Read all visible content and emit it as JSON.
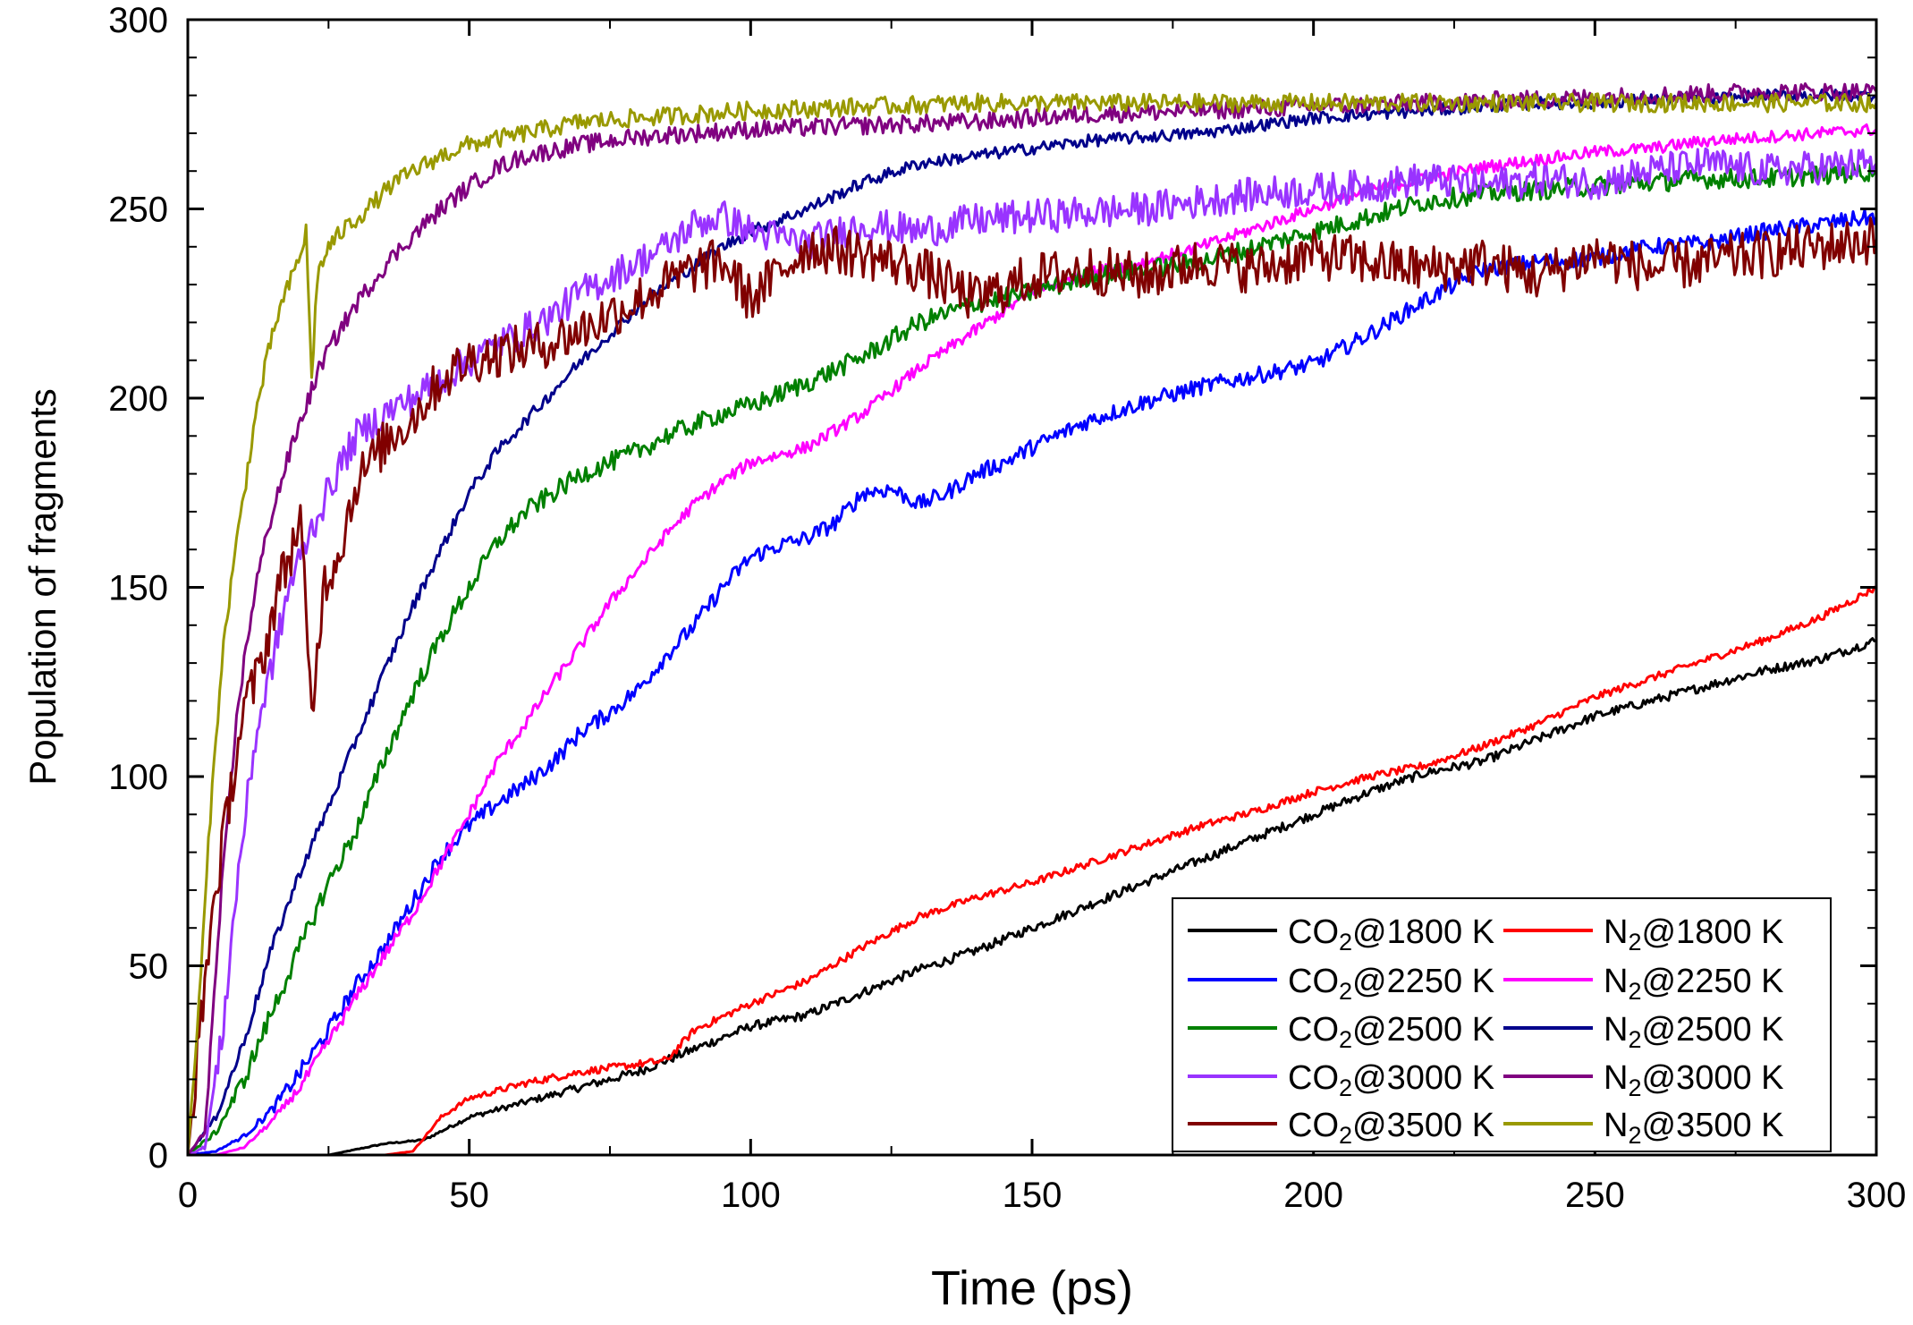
{
  "chart_data": {
    "type": "line",
    "title": "",
    "xlabel": "Time (ps)",
    "ylabel": "Population of fragments",
    "xlim": [
      0,
      300
    ],
    "ylim": [
      0,
      300
    ],
    "x_ticks": [
      "0",
      "50",
      "100",
      "150",
      "200",
      "250",
      "300"
    ],
    "y_ticks": [
      "0",
      "50",
      "100",
      "150",
      "200",
      "250",
      "300"
    ],
    "grid": false,
    "legend_position": "bottom-right",
    "series": [
      {
        "name": "CO2@1800 K",
        "formula": "CO",
        "sub": "2",
        "temp": "@1800 K",
        "color": "#000000",
        "x": [
          0,
          25,
          35,
          42,
          50,
          60,
          70,
          80,
          90,
          100,
          110,
          120,
          130,
          140,
          150,
          160,
          170,
          180,
          190,
          200,
          210,
          220,
          230,
          240,
          250,
          260,
          270,
          280,
          290,
          300
        ],
        "y": [
          0,
          0,
          3,
          4,
          10,
          14,
          18,
          22,
          28,
          34,
          37,
          43,
          49,
          54,
          60,
          66,
          72,
          78,
          84,
          90,
          96,
          101,
          104,
          110,
          116,
          120,
          124,
          128,
          131,
          136
        ]
      },
      {
        "name": "N2@1800 K",
        "formula": "N",
        "sub": "2",
        "temp": "@1800 K",
        "color": "#ff0000",
        "x": [
          0,
          35,
          40,
          45,
          50,
          60,
          70,
          80,
          85,
          90,
          100,
          110,
          120,
          130,
          140,
          150,
          160,
          170,
          180,
          190,
          200,
          210,
          220,
          230,
          240,
          250,
          260,
          270,
          280,
          290,
          300
        ],
        "y": [
          0,
          0,
          1,
          10,
          15,
          19,
          22,
          24,
          25,
          33,
          40,
          46,
          55,
          63,
          68,
          72,
          77,
          82,
          87,
          91,
          96,
          100,
          103,
          108,
          114,
          121,
          126,
          131,
          136,
          142,
          150
        ]
      },
      {
        "name": "CO2@2250 K",
        "formula": "CO",
        "sub": "2",
        "temp": "@2250 K",
        "color": "#0000ff",
        "x": [
          0,
          5,
          10,
          15,
          20,
          25,
          30,
          35,
          40,
          45,
          50,
          55,
          60,
          65,
          70,
          75,
          80,
          85,
          90,
          95,
          100,
          105,
          110,
          115,
          120,
          125,
          130,
          135,
          140,
          145,
          150,
          160,
          170,
          180,
          190,
          200,
          210,
          220,
          230,
          240,
          250,
          260,
          270,
          280,
          290,
          300
        ],
        "y": [
          0,
          1,
          5,
          12,
          22,
          33,
          45,
          55,
          67,
          79,
          87,
          93,
          98,
          104,
          112,
          117,
          123,
          132,
          140,
          150,
          158,
          161,
          163,
          167,
          175,
          176,
          172,
          175,
          180,
          183,
          187,
          194,
          199,
          203,
          206,
          209,
          217,
          226,
          234,
          236,
          237,
          240,
          241,
          244,
          246,
          248
        ]
      },
      {
        "name": "N2@2250 K",
        "formula": "N",
        "sub": "2",
        "temp": "@2250 K",
        "color": "#ff00ff",
        "x": [
          0,
          5,
          10,
          15,
          20,
          25,
          30,
          35,
          40,
          45,
          50,
          55,
          60,
          65,
          70,
          75,
          80,
          85,
          90,
          95,
          100,
          110,
          120,
          130,
          140,
          150,
          160,
          170,
          180,
          190,
          200,
          210,
          220,
          230,
          240,
          250,
          260,
          270,
          280,
          290,
          300
        ],
        "y": [
          0,
          0,
          2,
          9,
          18,
          30,
          42,
          53,
          64,
          77,
          90,
          104,
          114,
          125,
          135,
          146,
          155,
          164,
          172,
          178,
          183,
          187,
          196,
          208,
          218,
          228,
          233,
          236,
          240,
          245,
          250,
          255,
          258,
          261,
          263,
          265,
          266,
          268,
          269,
          270,
          271
        ]
      },
      {
        "name": "CO2@2500 K",
        "formula": "CO",
        "sub": "2",
        "temp": "@2500 K",
        "color": "#008000",
        "x": [
          0,
          5,
          10,
          15,
          20,
          25,
          30,
          35,
          40,
          45,
          50,
          55,
          60,
          65,
          70,
          75,
          80,
          85,
          90,
          95,
          100,
          110,
          120,
          130,
          140,
          150,
          160,
          170,
          180,
          190,
          200,
          210,
          220,
          230,
          240,
          250,
          260,
          270,
          280,
          290,
          300
        ],
        "y": [
          0,
          6,
          20,
          38,
          55,
          72,
          86,
          105,
          122,
          137,
          150,
          162,
          170,
          175,
          180,
          183,
          186,
          190,
          193,
          196,
          198,
          204,
          211,
          220,
          225,
          228,
          232,
          234,
          236,
          240,
          244,
          248,
          252,
          254,
          255,
          256,
          257,
          258,
          258,
          259,
          260
        ]
      },
      {
        "name": "N2@2500 K",
        "formula": "N",
        "sub": "2",
        "temp": "@2500 K",
        "color": "#00008b",
        "x": [
          0,
          5,
          10,
          15,
          20,
          25,
          30,
          35,
          40,
          45,
          50,
          55,
          60,
          65,
          70,
          75,
          80,
          85,
          90,
          95,
          100,
          110,
          120,
          130,
          140,
          150,
          160,
          170,
          180,
          190,
          200,
          210,
          220,
          230,
          240,
          250,
          260,
          270,
          280,
          290,
          300
        ],
        "y": [
          0,
          10,
          30,
          55,
          75,
          92,
          110,
          128,
          145,
          160,
          175,
          186,
          194,
          202,
          210,
          217,
          224,
          230,
          235,
          240,
          244,
          250,
          257,
          262,
          264,
          266,
          268,
          269,
          270,
          272,
          274,
          275,
          276,
          277,
          278,
          278,
          279,
          279,
          280,
          280,
          280
        ]
      },
      {
        "name": "CO2@3000 K",
        "formula": "CO",
        "sub": "2",
        "temp": "@3000 K",
        "color": "#9933ff",
        "x": [
          0,
          3,
          6,
          9,
          12,
          15,
          18,
          21,
          24,
          27,
          30,
          35,
          40,
          45,
          50,
          55,
          60,
          65,
          70,
          75,
          80,
          85,
          90,
          95,
          100,
          110,
          120,
          130,
          140,
          150,
          160,
          170,
          180,
          190,
          200,
          210,
          220,
          230,
          240,
          250,
          260,
          270,
          280,
          290,
          300
        ],
        "y": [
          0,
          2,
          30,
          75,
          110,
          130,
          150,
          162,
          172,
          182,
          190,
          196,
          200,
          205,
          210,
          214,
          218,
          222,
          228,
          232,
          236,
          240,
          246,
          248,
          244,
          241,
          246,
          244,
          247,
          248,
          249,
          250,
          252,
          254,
          255,
          256,
          258,
          256,
          258,
          257,
          260,
          262,
          260,
          261,
          262
        ]
      },
      {
        "name": "N2@3000 K",
        "formula": "N",
        "sub": "2",
        "temp": "@3000 K",
        "color": "#800080",
        "x": [
          0,
          3,
          6,
          9,
          12,
          15,
          18,
          21,
          24,
          27,
          30,
          35,
          40,
          45,
          50,
          55,
          60,
          70,
          80,
          90,
          100,
          120,
          140,
          160,
          180,
          200,
          220,
          240,
          260,
          280,
          300
        ],
        "y": [
          0,
          6,
          70,
          120,
          150,
          170,
          185,
          198,
          210,
          218,
          225,
          235,
          243,
          250,
          256,
          261,
          264,
          267,
          269,
          270,
          271,
          272,
          273,
          275,
          276,
          277,
          278,
          279,
          280,
          281,
          281
        ]
      },
      {
        "name": "CO2@3500 K",
        "formula": "CO",
        "sub": "2",
        "temp": "@3500 K",
        "color": "#800000",
        "x": [
          0,
          2,
          4,
          6,
          8,
          10,
          12,
          14,
          16,
          18,
          20,
          22,
          24,
          27,
          30,
          35,
          40,
          45,
          50,
          55,
          60,
          65,
          70,
          75,
          80,
          85,
          90,
          95,
          100,
          110,
          120,
          130,
          140,
          150,
          160,
          170,
          180,
          190,
          200,
          210,
          220,
          230,
          240,
          250,
          260,
          270,
          280,
          290,
          300
        ],
        "y": [
          0,
          30,
          60,
          80,
          100,
          118,
          125,
          135,
          150,
          158,
          168,
          115,
          150,
          160,
          178,
          188,
          195,
          205,
          210,
          212,
          213,
          215,
          218,
          222,
          226,
          230,
          234,
          236,
          226,
          240,
          238,
          234,
          226,
          232,
          234,
          232,
          236,
          234,
          238,
          236,
          234,
          236,
          232,
          238,
          234,
          236,
          238,
          240,
          242
        ]
      },
      {
        "name": "N2@3500 K",
        "formula": "N",
        "sub": "2",
        "temp": "@3500 K",
        "color": "#999900",
        "x": [
          0,
          2,
          4,
          6,
          8,
          10,
          12,
          14,
          16,
          18,
          20,
          21,
          22,
          23,
          25,
          28,
          32,
          36,
          40,
          45,
          50,
          60,
          70,
          80,
          90,
          100,
          120,
          140,
          160,
          180,
          200,
          220,
          240,
          260,
          280,
          300
        ],
        "y": [
          0,
          40,
          90,
          130,
          155,
          175,
          195,
          210,
          222,
          230,
          238,
          244,
          205,
          232,
          240,
          245,
          250,
          256,
          260,
          264,
          267,
          270,
          273,
          274,
          275,
          276,
          277,
          278,
          278,
          278,
          278,
          278,
          278,
          278,
          278,
          278
        ]
      }
    ]
  }
}
